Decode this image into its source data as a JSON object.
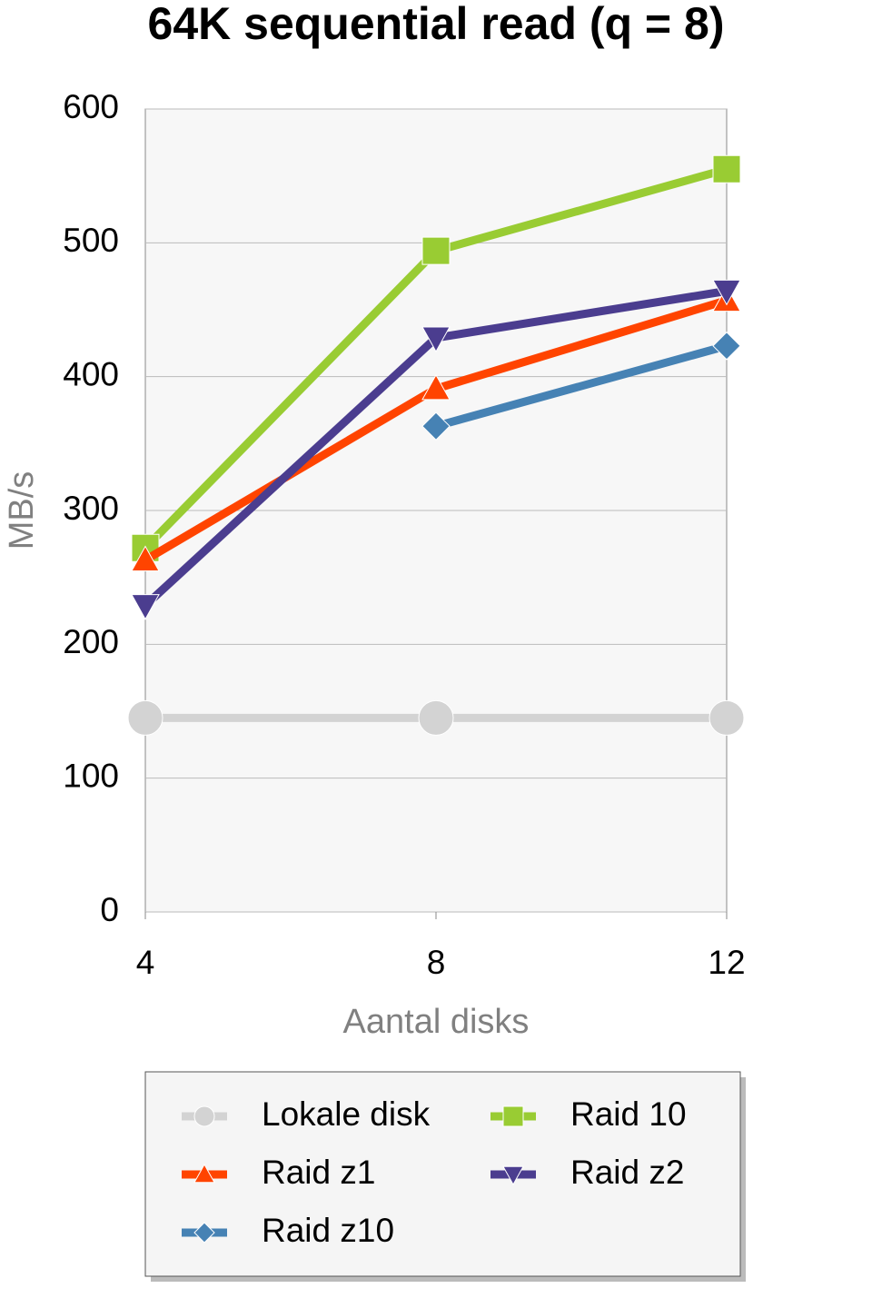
{
  "chart_data": {
    "type": "line",
    "title": "64K sequential read (q = 8)",
    "x_label": "Aantal disks",
    "y_label": "MB/s",
    "x": [
      4,
      8,
      12
    ],
    "xlim": [
      4,
      12
    ],
    "xticks": [
      4,
      8,
      12
    ],
    "ylim": [
      0,
      600
    ],
    "yticks": [
      0,
      100,
      200,
      300,
      400,
      500,
      600
    ],
    "grid": true,
    "legend": "bottom",
    "series": [
      {
        "name": "Lokale disk",
        "color": "#d3d3d3",
        "marker": "circle",
        "values": [
          145,
          145,
          145
        ]
      },
      {
        "name": "Raid 10",
        "color": "#99cc33",
        "marker": "square",
        "values": [
          272,
          494,
          555
        ]
      },
      {
        "name": "Raid z1",
        "color": "#ff4400",
        "marker": "triangle-up",
        "values": [
          263,
          391,
          457
        ]
      },
      {
        "name": "Raid z2",
        "color": "#4b3d8f",
        "marker": "triangle-down",
        "values": [
          229,
          429,
          464
        ]
      },
      {
        "name": "Raid z10",
        "color": "#4682b4",
        "marker": "diamond",
        "values": [
          null,
          363,
          423
        ]
      }
    ]
  }
}
